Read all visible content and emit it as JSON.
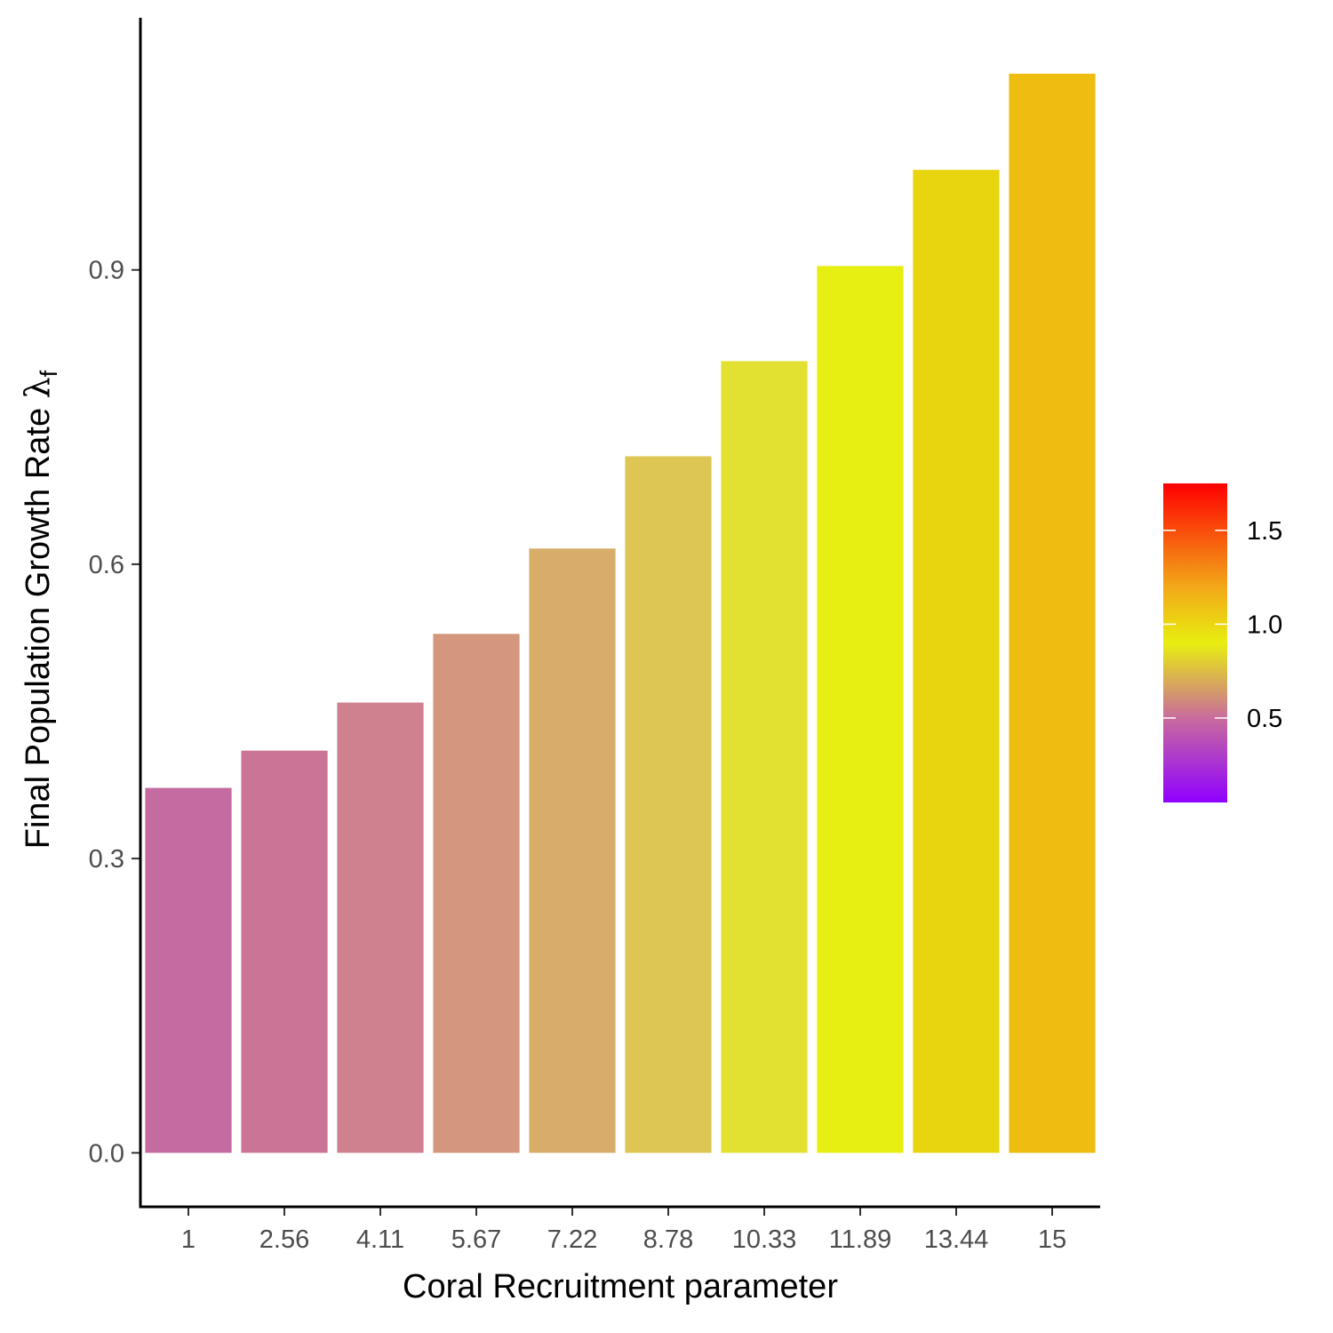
{
  "chart_data": {
    "type": "bar",
    "title": "",
    "xlabel": "Coral Recruitment parameter",
    "ylabel": "Final Population Growth Rate ",
    "ylabel_symbol": "λ",
    "ylabel_subscript": "f",
    "categories": [
      "1",
      "2.56",
      "4.11",
      "5.67",
      "7.22",
      "8.78",
      "10.33",
      "11.89",
      "13.44",
      "15"
    ],
    "values": [
      0.372,
      0.41,
      0.459,
      0.529,
      0.616,
      0.71,
      0.807,
      0.904,
      1.002,
      1.1
    ],
    "ylim": [
      -0.055,
      1.157
    ],
    "yticks": [
      0.0,
      0.3,
      0.6,
      0.9
    ],
    "ytick_labels": [
      "0.0",
      "0.3",
      "0.6",
      "0.9"
    ],
    "grid": false,
    "legend": {
      "type": "colorbar",
      "placement": "right",
      "range": [
        0.05,
        1.75
      ],
      "ticks": [
        0.5,
        1.0,
        1.5
      ],
      "tick_labels": [
        "0.5",
        "1.0",
        "1.5"
      ],
      "gradient": [
        {
          "value": 0.05,
          "color": "#8f00ff"
        },
        {
          "value": 0.5,
          "color": "#c96c9c"
        },
        {
          "value": 0.9,
          "color": "#e8ee10"
        },
        {
          "value": 1.2,
          "color": "#f2a818"
        },
        {
          "value": 1.75,
          "color": "#ff0000"
        }
      ]
    },
    "bar_colors": [
      "#c46ca1",
      "#cb7596",
      "#cf8190",
      "#d4967c",
      "#d8ad69",
      "#ddc653",
      "#e2e132",
      "#e7ee11",
      "#e8d510",
      "#eebd0f"
    ]
  }
}
